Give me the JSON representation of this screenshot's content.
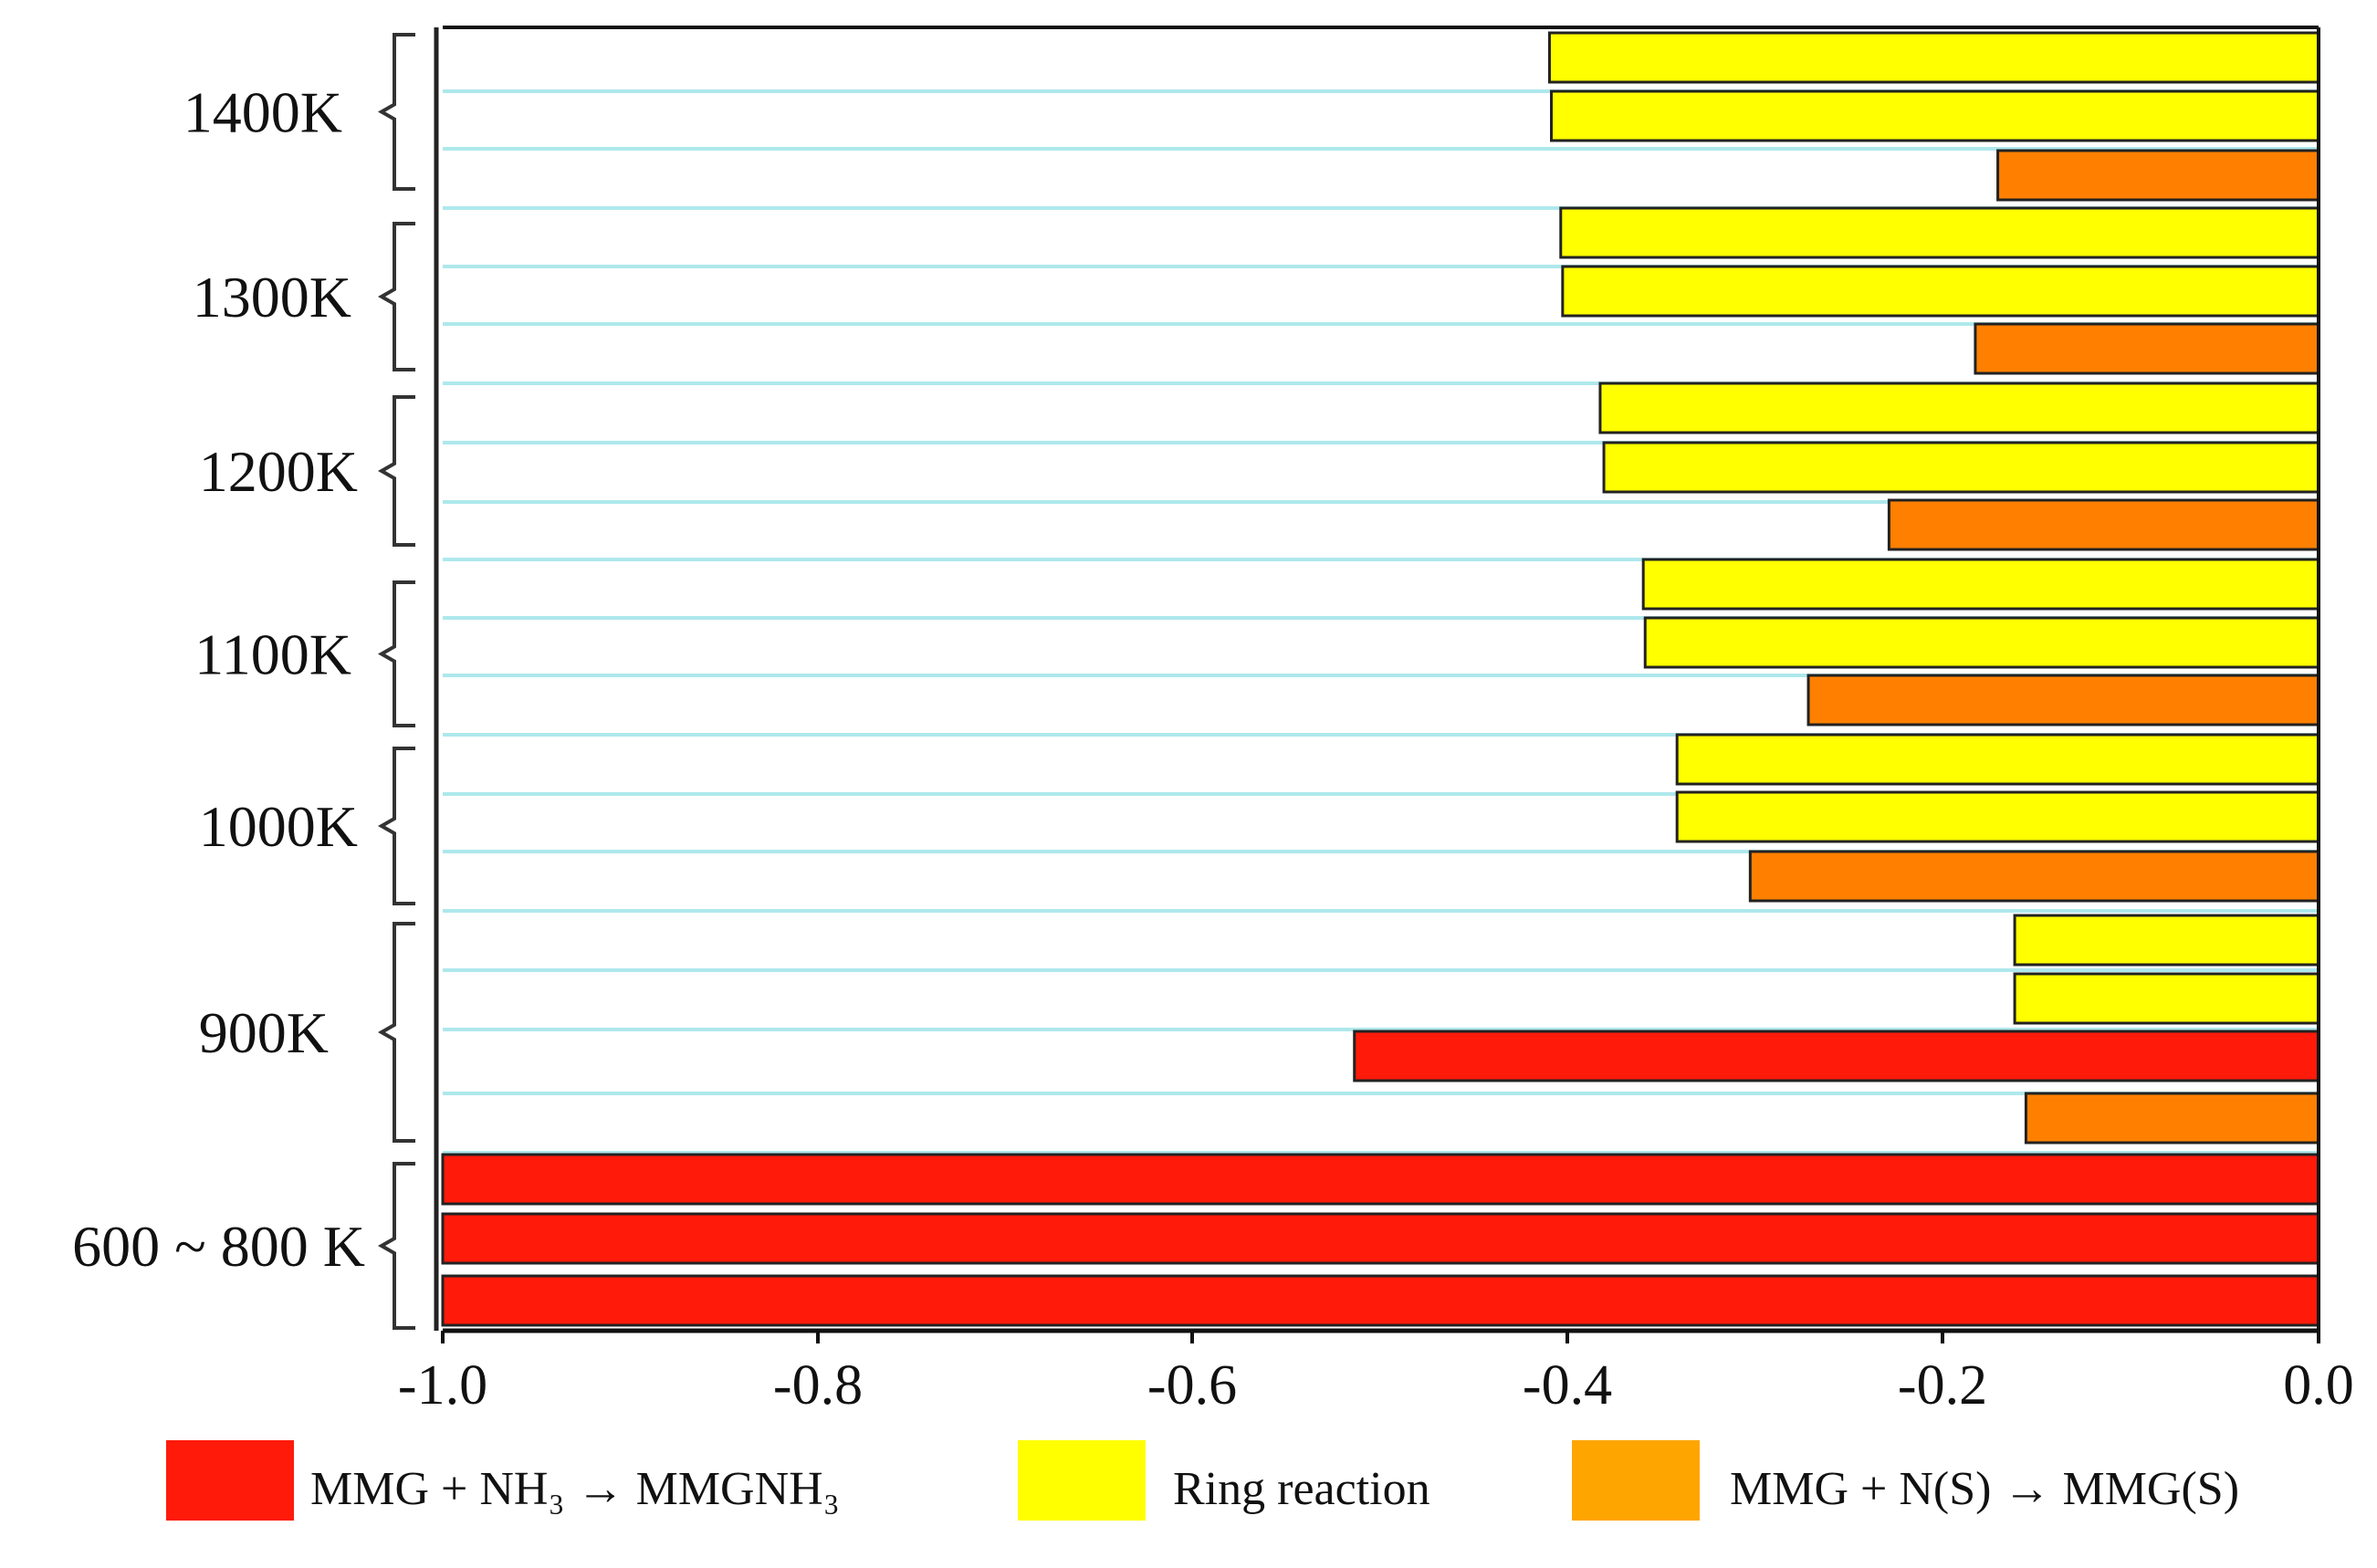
{
  "chart_data": {
    "type": "bar",
    "orientation": "horizontal",
    "title": "",
    "xlabel": "",
    "ylabel": "",
    "xlim": [
      -1.0,
      0.0
    ],
    "x_ticks": [
      -1.0,
      -0.8,
      -0.6,
      -0.4,
      -0.2,
      0.0
    ],
    "x_tick_labels": [
      "-1.0",
      "-0.8",
      "-0.6",
      "-0.4",
      "-0.2",
      "0.0"
    ],
    "colors": {
      "mmg_nh3": "#ff1a0a",
      "ring": "#ffff00",
      "mmg_ns": "#ff8000",
      "legend_mmg_ns": "#ffa500",
      "gridline": "#aee8ec"
    },
    "legend": {
      "placement": "bottom",
      "entries": [
        {
          "key": "mmg_nh3",
          "label": "MMG + NH₃ → MMGNH₃"
        },
        {
          "key": "ring",
          "label": "Ring reaction"
        },
        {
          "key": "mmg_ns",
          "label": "MMG + N(S) → MMG(S)"
        }
      ]
    },
    "groups": [
      {
        "label": "1400K",
        "bars": [
          {
            "series": "ring",
            "value": -0.41
          },
          {
            "series": "ring",
            "value": -0.409
          },
          {
            "series": "mmg_ns",
            "value": -0.171
          }
        ]
      },
      {
        "label": "1300K",
        "bars": [
          {
            "series": "ring",
            "value": -0.404
          },
          {
            "series": "ring",
            "value": -0.403
          },
          {
            "series": "mmg_ns",
            "value": -0.183
          }
        ]
      },
      {
        "label": "1200K",
        "bars": [
          {
            "series": "ring",
            "value": -0.383
          },
          {
            "series": "ring",
            "value": -0.381
          },
          {
            "series": "mmg_ns",
            "value": -0.229
          }
        ]
      },
      {
        "label": "1100K",
        "bars": [
          {
            "series": "ring",
            "value": -0.36
          },
          {
            "series": "ring",
            "value": -0.359
          },
          {
            "series": "mmg_ns",
            "value": -0.272
          }
        ]
      },
      {
        "label": "1000K",
        "bars": [
          {
            "series": "ring",
            "value": -0.342
          },
          {
            "series": "ring",
            "value": -0.342
          },
          {
            "series": "mmg_ns",
            "value": -0.303
          }
        ]
      },
      {
        "label": "900K",
        "bars": [
          {
            "series": "ring",
            "value": -0.162
          },
          {
            "series": "ring",
            "value": -0.162
          },
          {
            "series": "mmg_nh3",
            "value": -0.514
          },
          {
            "series": "mmg_ns",
            "value": -0.156
          }
        ]
      },
      {
        "label": "600 ~ 800 K",
        "bars": [
          {
            "series": "mmg_nh3",
            "value": -1.0
          },
          {
            "series": "mmg_nh3",
            "value": -1.0
          },
          {
            "series": "mmg_nh3",
            "value": -1.0
          }
        ]
      }
    ]
  }
}
